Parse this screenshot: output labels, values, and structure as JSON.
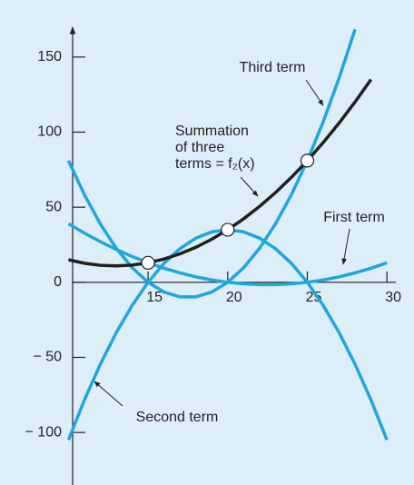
{
  "chart_data": {
    "type": "line",
    "x": [
      10,
      11,
      12,
      13,
      14,
      15,
      16,
      17,
      18,
      19,
      20,
      21,
      22,
      23,
      24,
      25,
      26,
      27,
      28,
      29,
      30
    ],
    "series": [
      {
        "name": "First term",
        "color": "#1ba8de",
        "values": [
          39,
          32.76,
          27.04,
          21.84,
          17.16,
          13,
          9.36,
          6.24,
          3.64,
          1.56,
          0,
          -1.04,
          -1.56,
          -1.56,
          -1.04,
          0,
          1.56,
          3.64,
          6.24,
          9.36,
          13
        ]
      },
      {
        "name": "Second term",
        "color": "#1ba8de",
        "values": [
          -105,
          -78.4,
          -54.6,
          -33.6,
          -15.4,
          0,
          12.6,
          22.4,
          29.4,
          33.6,
          35,
          33.6,
          29.4,
          22.4,
          12.6,
          0,
          -15.4,
          -33.6,
          -54.6,
          -78.4,
          -105
        ]
      },
      {
        "name": "Third term",
        "color": "#1ba8de",
        "values": [
          81,
          58.32,
          38.88,
          22.68,
          9.72,
          0,
          -6.48,
          -9.72,
          -9.72,
          -6.48,
          0,
          9.72,
          22.68,
          38.88,
          58.32,
          81,
          106.92,
          136.08,
          168.48,
          null,
          null
        ]
      },
      {
        "name": "Summation of three terms",
        "color": "#231f20",
        "values": [
          15,
          12.68,
          11.32,
          10.92,
          11.48,
          13,
          15.48,
          18.92,
          23.32,
          28.68,
          35,
          42.28,
          50.52,
          59.72,
          69.88,
          81,
          93.08,
          106.12,
          120.12,
          135.08,
          null
        ]
      }
    ],
    "points": {
      "x": [
        15,
        20,
        25
      ],
      "y": [
        13,
        35,
        81
      ]
    },
    "annotations": [
      {
        "lines": [
          "Third term"
        ]
      },
      {
        "lines": [
          "Summation",
          "of three",
          "terms = f₂(x)"
        ]
      },
      {
        "lines": [
          "First term"
        ]
      },
      {
        "lines": [
          "Second term"
        ]
      }
    ],
    "xlim": [
      5.7,
      31.7
    ],
    "ylim": [
      -135,
      188
    ],
    "xticks": [
      15,
      20,
      25,
      30
    ],
    "yticks": [
      150,
      100,
      50,
      0,
      {
        "value": -50,
        "label": "− 50"
      },
      {
        "value": -100,
        "label": "− 100"
      }
    ],
    "background": "#deeef9"
  }
}
